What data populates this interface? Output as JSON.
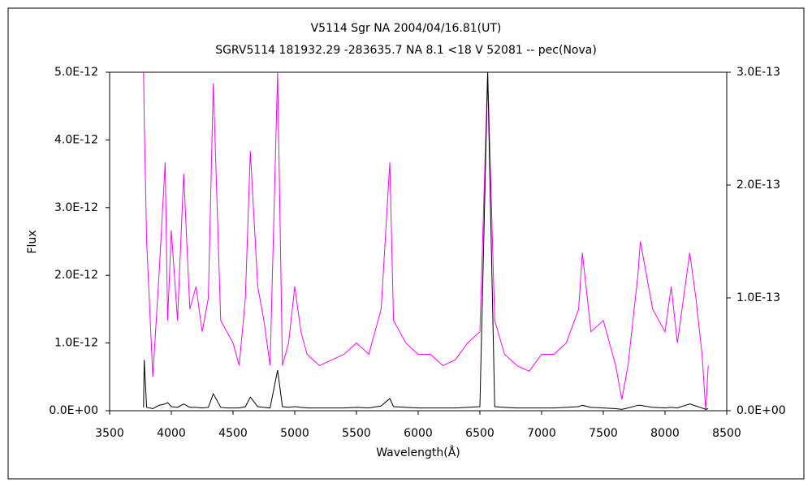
{
  "chart_data": {
    "type": "line",
    "title": "V5114 Sgr    NA    2004/04/16.81(UT)",
    "subtitle": "SGRV5114 181932.29 -283635.7 NA 8.1 <18 V 52081 -- pec(Nova)",
    "x_label": "Wavelength(Å)",
    "y_label": "Flux",
    "x": [
      3775,
      3780,
      3800,
      3850,
      3900,
      3950,
      3970,
      4000,
      4050,
      4100,
      4150,
      4200,
      4250,
      4300,
      4340,
      4400,
      4450,
      4500,
      4550,
      4600,
      4640,
      4700,
      4750,
      4800,
      4861,
      4900,
      4950,
      5000,
      5050,
      5100,
      5200,
      5300,
      5400,
      5500,
      5600,
      5700,
      5770,
      5800,
      5900,
      6000,
      6100,
      6200,
      6300,
      6400,
      6500,
      6563,
      6620,
      6700,
      6800,
      6900,
      7000,
      7100,
      7200,
      7300,
      7330,
      7400,
      7500,
      7600,
      7650,
      7700,
      7780,
      7800,
      7900,
      8000,
      8050,
      8100,
      8200,
      8250,
      8300,
      8330,
      8350
    ],
    "series": [
      {
        "color": "#000000",
        "values": [
          5e-14,
          7.5e-13,
          5e-14,
          3e-14,
          8e-14,
          1e-13,
          1.2e-13,
          6e-14,
          5e-14,
          1e-13,
          5e-14,
          5e-14,
          4e-14,
          5e-14,
          2.5e-13,
          5e-14,
          4e-14,
          4e-14,
          4e-14,
          6e-14,
          2e-13,
          6e-14,
          5e-14,
          4e-14,
          6e-13,
          6e-14,
          5e-14,
          6e-14,
          5e-14,
          4e-14,
          4e-14,
          4e-14,
          4e-14,
          5e-14,
          4e-14,
          7e-14,
          1.8e-13,
          6e-14,
          5e-14,
          4e-14,
          4e-14,
          4e-14,
          4e-14,
          5e-14,
          6e-14,
          5e-12,
          6e-14,
          5e-14,
          4e-14,
          4e-14,
          4e-14,
          4e-14,
          5e-14,
          6e-14,
          8e-14,
          5e-14,
          4e-14,
          3e-14,
          2e-14,
          4e-14,
          8e-14,
          8e-14,
          5e-14,
          4e-14,
          5e-14,
          4e-14,
          1e-13,
          7e-14,
          4e-14,
          2e-14,
          3e-14
        ]
      },
      {
        "color": "#ff00ff",
        "axis": "y2",
        "values": [
          3e-13,
          2.6e-13,
          1.5e-13,
          3e-14,
          1.2e-13,
          2.2e-13,
          8e-14,
          1.6e-13,
          8e-14,
          2.1e-13,
          9e-14,
          1.1e-13,
          7e-14,
          1e-13,
          2.9e-13,
          8e-14,
          7e-14,
          6e-14,
          4e-14,
          1e-13,
          2.3e-13,
          1.1e-13,
          8e-14,
          4e-14,
          3e-13,
          4e-14,
          6e-14,
          1.1e-13,
          7e-14,
          5e-14,
          4e-14,
          4.5e-14,
          5e-14,
          6e-14,
          5e-14,
          9e-14,
          2.2e-13,
          8e-14,
          6e-14,
          5e-14,
          5e-14,
          4e-14,
          4.5e-14,
          6e-14,
          7e-14,
          3e-13,
          8e-14,
          5e-14,
          4e-14,
          3.5e-14,
          5e-14,
          5e-14,
          6e-14,
          9e-14,
          1.4e-13,
          7e-14,
          8e-14,
          4e-14,
          1e-14,
          4e-14,
          1.2e-13,
          1.5e-13,
          9e-14,
          7e-14,
          1.1e-13,
          6e-14,
          1.4e-13,
          1e-13,
          5e-14,
          0,
          4e-14
        ]
      }
    ],
    "xlim": [
      3500,
      8500
    ],
    "xticks": [
      3500,
      4000,
      4500,
      5000,
      5500,
      6000,
      6500,
      7000,
      7500,
      8000,
      8500
    ],
    "ylim": [
      0,
      5e-12
    ],
    "yticks": [
      {
        "value": 0,
        "label": "0.0E+00"
      },
      {
        "value": 1e-12,
        "label": "1.0E-12"
      },
      {
        "value": 2e-12,
        "label": "2.0E-12"
      },
      {
        "value": 3e-12,
        "label": "3.0E-12"
      },
      {
        "value": 4e-12,
        "label": "4.0E-12"
      },
      {
        "value": 5e-12,
        "label": "5.0E-12"
      }
    ],
    "y2lim": [
      0,
      3e-13
    ],
    "y2ticks": [
      {
        "value": 0,
        "label": "0.0E+00"
      },
      {
        "value": 1e-13,
        "label": "1.0E-13"
      },
      {
        "value": 2e-13,
        "label": "2.0E-13"
      },
      {
        "value": 3e-13,
        "label": "3.0E-13"
      }
    ],
    "y2_color": "#ff00ff"
  }
}
